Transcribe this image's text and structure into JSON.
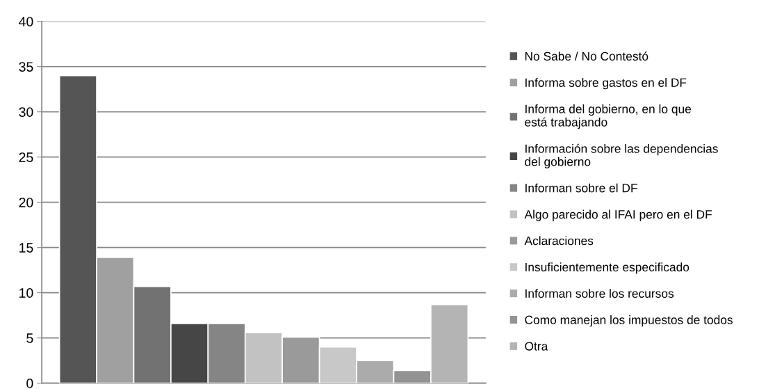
{
  "chart_data": {
    "type": "bar",
    "categories": [
      null
    ],
    "series": [
      {
        "name": "No Sabe / No Contestó",
        "color": "#555555",
        "values": [
          34
        ]
      },
      {
        "name": "Informa sobre gastos en el DF",
        "color": "#a0a0a0",
        "values": [
          13.9
        ]
      },
      {
        "name": "Informa del gobierno, en lo que está trabajando",
        "color": "#727272",
        "values": [
          10.7
        ]
      },
      {
        "name": "Información sobre las dependencias del gobierno",
        "color": "#464646",
        "values": [
          6.6
        ]
      },
      {
        "name": "Informan sobre el DF",
        "color": "#858585",
        "values": [
          6.6
        ]
      },
      {
        "name": "Algo parecido al IFAI pero en el DF",
        "color": "#c2c2c2",
        "values": [
          5.6
        ]
      },
      {
        "name": "Aclaraciones",
        "color": "#9a9a9a",
        "values": [
          5.1
        ]
      },
      {
        "name": "Insuficientemente especificado",
        "color": "#c8c8c8",
        "values": [
          4.0
        ]
      },
      {
        "name": "Informan sobre los recursos",
        "color": "#ababab",
        "values": [
          2.5
        ]
      },
      {
        "name": "Como manejan los impuestos de todos",
        "color": "#939393",
        "values": [
          1.4
        ]
      },
      {
        "name": "Otra",
        "color": "#b4b4b4",
        "values": [
          8.7
        ]
      }
    ],
    "ylim": [
      0,
      40
    ],
    "yticks": [
      0,
      5,
      10,
      15,
      20,
      25,
      30,
      35,
      40
    ],
    "grid": "y",
    "legend": "right"
  }
}
